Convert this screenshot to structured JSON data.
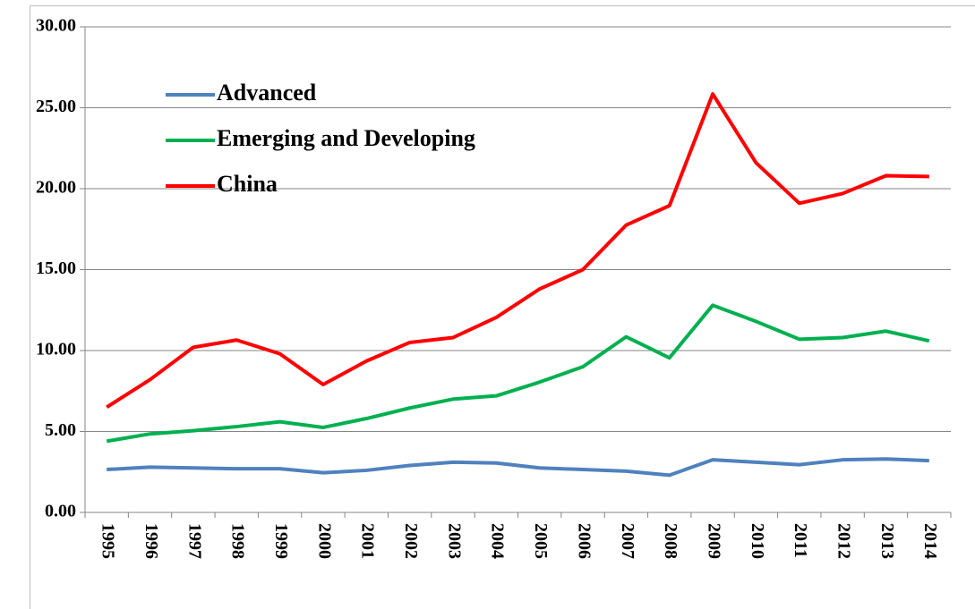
{
  "chart_data": {
    "type": "line",
    "categories": [
      "1995",
      "1996",
      "1997",
      "1998",
      "1999",
      "2000",
      "2001",
      "2002",
      "2003",
      "2004",
      "2005",
      "2006",
      "2007",
      "2008",
      "2009",
      "2010",
      "2011",
      "2012",
      "2013",
      "2014"
    ],
    "series": [
      {
        "name": "Advanced",
        "color": "#4f81bd",
        "values": [
          2.65,
          2.8,
          2.75,
          2.7,
          2.7,
          2.45,
          2.6,
          2.9,
          3.1,
          3.05,
          2.75,
          2.65,
          2.55,
          2.3,
          3.25,
          3.1,
          2.95,
          3.25,
          3.3,
          3.2
        ]
      },
      {
        "name": "Emerging and Developing",
        "color": "#00b050",
        "values": [
          4.4,
          4.85,
          5.05,
          5.3,
          5.6,
          5.25,
          5.8,
          6.45,
          7.0,
          7.2,
          8.05,
          9.0,
          10.85,
          9.55,
          12.8,
          11.8,
          10.7,
          10.8,
          11.2,
          10.6
        ]
      },
      {
        "name": "China",
        "color": "#ff0000",
        "values": [
          6.5,
          8.2,
          10.2,
          10.65,
          9.8,
          7.9,
          9.35,
          10.5,
          10.8,
          12.05,
          13.8,
          15.0,
          17.75,
          18.95,
          25.85,
          21.6,
          19.1,
          19.7,
          20.8,
          20.75
        ]
      }
    ],
    "ylim": [
      0,
      30
    ],
    "yticks": [
      {
        "value": 0,
        "label": "0.00"
      },
      {
        "value": 5,
        "label": "5.00"
      },
      {
        "value": 10,
        "label": "10.00"
      },
      {
        "value": 15,
        "label": "15.00"
      },
      {
        "value": 20,
        "label": "20.00"
      },
      {
        "value": 25,
        "label": "25.00"
      },
      {
        "value": 30,
        "label": "30.00"
      }
    ],
    "grid": true,
    "legend": "upper left"
  }
}
